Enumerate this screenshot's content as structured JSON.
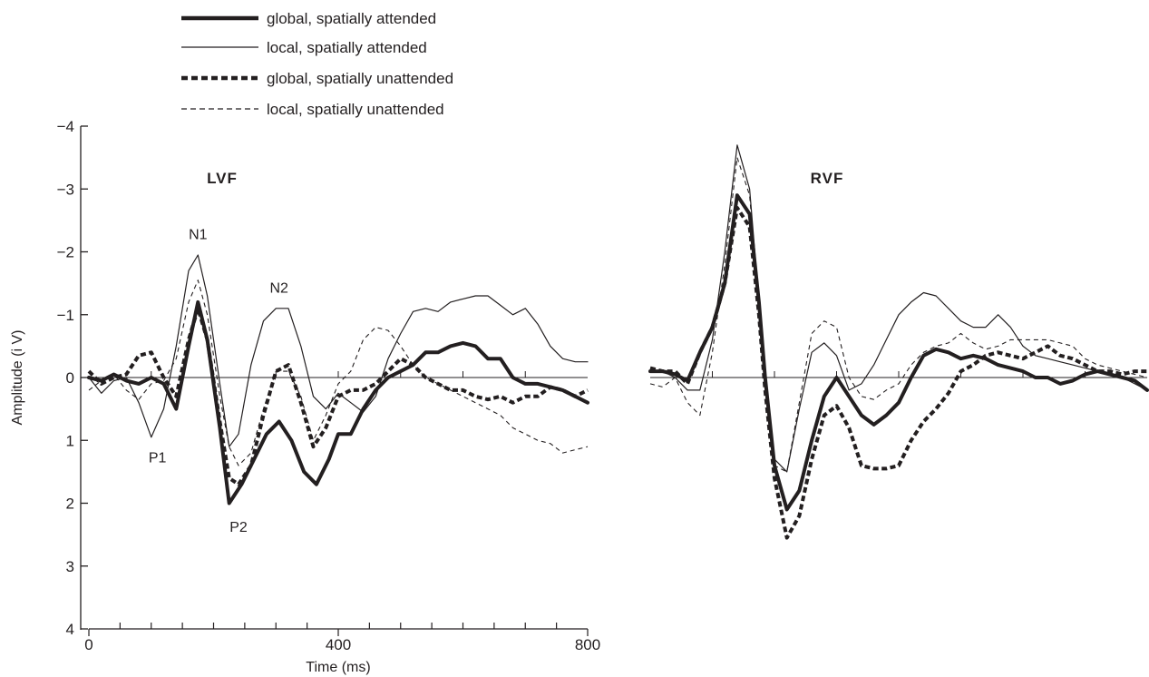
{
  "chart_data": {
    "type": "line",
    "title": "",
    "xlabel": "Time (ms)",
    "ylabel": "Amplitude (i V)",
    "x_ticks": [
      "0",
      "400",
      "800"
    ],
    "x_tick_values": [
      0,
      400,
      800
    ],
    "y_ticks": [
      "−4",
      "−3",
      "−2",
      "−1",
      "0",
      "1",
      "2",
      "3",
      "4"
    ],
    "y_tick_values": [
      -4,
      -3,
      -2,
      -1,
      0,
      1,
      2,
      3,
      4
    ],
    "xlim": [
      0,
      800
    ],
    "ylim": [
      -4,
      4
    ],
    "y_inverted": true,
    "grid": false,
    "legend_placement": "top-left",
    "colors": {
      "line": "#231f20"
    },
    "legend": [
      {
        "name": "global, spatially attended",
        "style": "thick-solid"
      },
      {
        "name": "local, spatially attended",
        "style": "thin-solid"
      },
      {
        "name": "global, spatially unattended",
        "style": "thick-dashed"
      },
      {
        "name": "local, spatially unattended",
        "style": "thin-dashed"
      }
    ],
    "panels": [
      {
        "title": "LVF",
        "peak_labels": [
          {
            "text": "N1",
            "x": 175,
            "y": -2.2
          },
          {
            "text": "N2",
            "x": 305,
            "y": -1.35
          },
          {
            "text": "P1",
            "x": 110,
            "y": 1.15
          },
          {
            "text": "P2",
            "x": 240,
            "y": 2.25
          }
        ],
        "series": [
          {
            "name": "global, spatially attended",
            "style": "thick-solid",
            "x": [
              0,
              20,
              40,
              60,
              80,
              100,
              120,
              140,
              160,
              175,
              190,
              210,
              225,
              245,
              265,
              285,
              305,
              325,
              345,
              365,
              385,
              400,
              420,
              440,
              460,
              480,
              500,
              520,
              540,
              560,
              580,
              600,
              620,
              640,
              660,
              680,
              700,
              720,
              740,
              760,
              780,
              800
            ],
            "y": [
              0,
              0.05,
              -0.05,
              0.05,
              0.1,
              0,
              0.1,
              0.5,
              -0.5,
              -1.2,
              -0.6,
              0.8,
              2.0,
              1.7,
              1.3,
              0.9,
              0.7,
              1.0,
              1.5,
              1.7,
              1.3,
              0.9,
              0.9,
              0.5,
              0.2,
              0,
              -0.1,
              -0.2,
              -0.4,
              -0.4,
              -0.5,
              -0.55,
              -0.5,
              -0.3,
              -0.3,
              0,
              0.1,
              0.1,
              0.15,
              0.2,
              0.3,
              0.4
            ]
          },
          {
            "name": "local, spatially attended",
            "style": "thin-solid",
            "x": [
              0,
              20,
              40,
              60,
              80,
              100,
              120,
              140,
              160,
              175,
              190,
              210,
              225,
              240,
              260,
              280,
              300,
              320,
              340,
              360,
              380,
              400,
              420,
              440,
              460,
              480,
              500,
              520,
              540,
              560,
              580,
              600,
              620,
              640,
              660,
              680,
              700,
              720,
              740,
              760,
              780,
              800
            ],
            "y": [
              0,
              0.25,
              0.05,
              0,
              0.4,
              0.95,
              0.5,
              -0.5,
              -1.7,
              -1.95,
              -1.3,
              0.1,
              1.1,
              0.9,
              -0.2,
              -0.9,
              -1.1,
              -1.1,
              -0.5,
              0.3,
              0.5,
              0.25,
              0.4,
              0.55,
              0.3,
              -0.3,
              -0.7,
              -1.05,
              -1.1,
              -1.05,
              -1.2,
              -1.25,
              -1.3,
              -1.3,
              -1.15,
              -1.0,
              -1.1,
              -0.85,
              -0.5,
              -0.3,
              -0.25,
              -0.25
            ]
          },
          {
            "name": "global, spatially unattended",
            "style": "thick-dashed",
            "x": [
              0,
              20,
              40,
              60,
              80,
              100,
              120,
              140,
              160,
              175,
              190,
              210,
              225,
              240,
              260,
              280,
              300,
              320,
              340,
              360,
              380,
              400,
              420,
              440,
              460,
              480,
              500,
              520,
              540,
              560,
              580,
              600,
              620,
              640,
              660,
              680,
              700,
              720,
              740,
              760,
              780,
              800
            ],
            "y": [
              -0.1,
              0.1,
              0,
              -0.05,
              -0.35,
              -0.4,
              0,
              0.3,
              -0.6,
              -1.1,
              -0.6,
              0.7,
              1.6,
              1.7,
              1.4,
              0.6,
              -0.1,
              -0.2,
              0.4,
              1.1,
              0.8,
              0.3,
              0.2,
              0.2,
              0.1,
              -0.1,
              -0.3,
              -0.2,
              0,
              0.1,
              0.2,
              0.2,
              0.3,
              0.35,
              0.3,
              0.4,
              0.3,
              0.3,
              0.15,
              0.2,
              0.3,
              0.2
            ]
          },
          {
            "name": "local, spatially unattended",
            "style": "thin-dashed",
            "x": [
              0,
              20,
              40,
              60,
              80,
              100,
              120,
              140,
              160,
              175,
              190,
              210,
              225,
              240,
              260,
              280,
              300,
              320,
              340,
              360,
              380,
              400,
              420,
              440,
              460,
              480,
              500,
              520,
              540,
              560,
              580,
              600,
              620,
              640,
              660,
              680,
              700,
              720,
              740,
              760,
              780,
              800
            ],
            "y": [
              0.2,
              0.05,
              -0.05,
              0.2,
              0.35,
              0.1,
              0.05,
              -0.3,
              -1.2,
              -1.55,
              -1.0,
              0.3,
              1.1,
              1.4,
              1.2,
              0.5,
              -0.1,
              -0.1,
              0.3,
              1.0,
              0.6,
              0.1,
              -0.1,
              -0.6,
              -0.8,
              -0.75,
              -0.5,
              -0.2,
              0,
              0.1,
              0.2,
              0.3,
              0.4,
              0.5,
              0.6,
              0.8,
              0.9,
              1.0,
              1.05,
              1.2,
              1.15,
              1.1
            ]
          }
        ]
      },
      {
        "title": "RVF",
        "peak_labels": [],
        "series": [
          {
            "name": "global, spatially attended",
            "style": "thick-solid",
            "x": [
              0,
              20,
              40,
              60,
              80,
              100,
              120,
              140,
              160,
              175,
              185,
              200,
              220,
              240,
              260,
              280,
              300,
              320,
              340,
              360,
              380,
              400,
              420,
              440,
              460,
              480,
              500,
              520,
              540,
              560,
              580,
              600,
              620,
              640,
              660,
              680,
              700,
              720,
              740,
              760,
              780,
              800
            ],
            "y": [
              -0.1,
              -0.1,
              -0.05,
              0.05,
              -0.4,
              -0.8,
              -1.5,
              -2.9,
              -2.6,
              -1.2,
              0,
              1.4,
              2.1,
              1.8,
              1.0,
              0.3,
              0,
              0.3,
              0.6,
              0.75,
              0.6,
              0.4,
              0,
              -0.35,
              -0.45,
              -0.4,
              -0.3,
              -0.35,
              -0.3,
              -0.2,
              -0.15,
              -0.1,
              0,
              0,
              0.1,
              0.05,
              -0.05,
              -0.1,
              -0.05,
              0,
              0.05,
              0.2
            ]
          },
          {
            "name": "local, spatially attended",
            "style": "thin-solid",
            "x": [
              0,
              20,
              40,
              60,
              80,
              100,
              120,
              140,
              160,
              175,
              185,
              200,
              220,
              240,
              260,
              280,
              300,
              320,
              340,
              360,
              380,
              400,
              420,
              440,
              460,
              480,
              500,
              520,
              540,
              560,
              580,
              600,
              620,
              640,
              660,
              680,
              700,
              720,
              740,
              760,
              780,
              800
            ],
            "y": [
              -0.1,
              -0.1,
              0,
              0.2,
              0.2,
              -0.6,
              -2.0,
              -3.7,
              -3.0,
              -1.2,
              0.2,
              1.3,
              1.5,
              0.5,
              -0.4,
              -0.55,
              -0.35,
              0.2,
              0.1,
              -0.2,
              -0.6,
              -1.0,
              -1.2,
              -1.35,
              -1.3,
              -1.1,
              -0.9,
              -0.8,
              -0.8,
              -1.0,
              -0.8,
              -0.5,
              -0.35,
              -0.3,
              -0.25,
              -0.2,
              -0.15,
              -0.1,
              -0.05,
              0,
              0.1,
              0.2
            ]
          },
          {
            "name": "global, spatially unattended",
            "style": "thick-dashed",
            "x": [
              0,
              20,
              40,
              60,
              80,
              100,
              120,
              140,
              160,
              175,
              185,
              200,
              220,
              240,
              260,
              280,
              300,
              320,
              340,
              360,
              380,
              400,
              420,
              440,
              460,
              480,
              500,
              520,
              540,
              560,
              580,
              600,
              620,
              640,
              660,
              680,
              700,
              720,
              740,
              760,
              780,
              800
            ],
            "y": [
              -0.15,
              -0.1,
              -0.1,
              0.1,
              -0.4,
              -0.8,
              -1.5,
              -2.7,
              -2.4,
              -1.0,
              0.2,
              1.6,
              2.55,
              2.2,
              1.3,
              0.6,
              0.45,
              0.8,
              1.4,
              1.45,
              1.45,
              1.4,
              1.0,
              0.7,
              0.5,
              0.25,
              -0.1,
              -0.2,
              -0.35,
              -0.4,
              -0.35,
              -0.3,
              -0.4,
              -0.5,
              -0.35,
              -0.3,
              -0.2,
              -0.1,
              -0.1,
              -0.05,
              -0.1,
              -0.1
            ]
          },
          {
            "name": "local, spatially unattended",
            "style": "thin-dashed",
            "x": [
              0,
              20,
              40,
              60,
              80,
              100,
              120,
              140,
              160,
              175,
              185,
              200,
              220,
              240,
              260,
              280,
              300,
              320,
              340,
              360,
              380,
              400,
              420,
              440,
              460,
              480,
              500,
              520,
              540,
              560,
              580,
              600,
              620,
              640,
              660,
              680,
              700,
              720,
              740,
              760,
              780,
              800
            ],
            "y": [
              0.1,
              0.15,
              0,
              0.4,
              0.6,
              -0.4,
              -1.8,
              -3.5,
              -2.9,
              -1.1,
              0.2,
              1.4,
              1.5,
              0.4,
              -0.7,
              -0.9,
              -0.8,
              0,
              0.3,
              0.35,
              0.2,
              0.1,
              -0.2,
              -0.4,
              -0.5,
              -0.55,
              -0.7,
              -0.55,
              -0.45,
              -0.5,
              -0.6,
              -0.6,
              -0.6,
              -0.6,
              -0.55,
              -0.5,
              -0.3,
              -0.2,
              -0.15,
              -0.1,
              -0.05,
              0
            ]
          }
        ]
      }
    ]
  }
}
